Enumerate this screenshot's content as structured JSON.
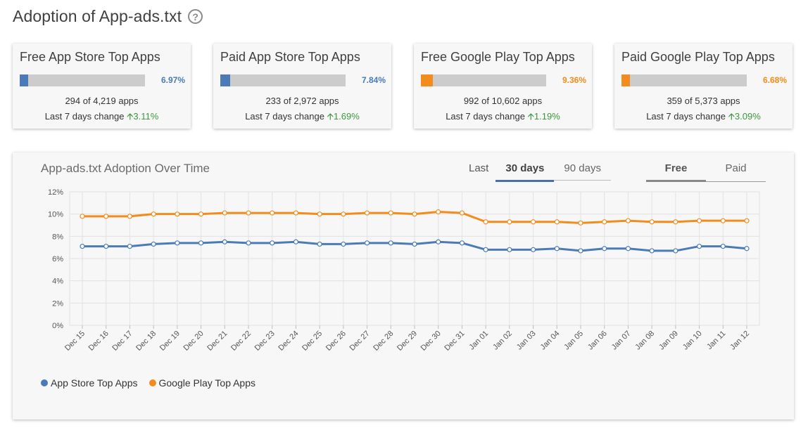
{
  "page": {
    "title": "Adoption of App-ads.txt",
    "help_icon": "question-circle-icon"
  },
  "colors": {
    "blue": "#4a7bb7",
    "orange": "#f28c1c",
    "green": "#3a9a3a"
  },
  "cards": [
    {
      "title": "Free App Store Top Apps",
      "percent_label": "6.97%",
      "fill_percent": 6.97,
      "color": "#4a7bb7",
      "count": "294 of 4,219 apps",
      "change_label": "Last 7 days change",
      "change_value": "3.11%"
    },
    {
      "title": "Paid App Store Top Apps",
      "percent_label": "7.84%",
      "fill_percent": 7.84,
      "color": "#4a7bb7",
      "count": "233 of 2,972 apps",
      "change_label": "Last 7 days change",
      "change_value": "1.69%"
    },
    {
      "title": "Free Google Play Top Apps",
      "percent_label": "9.36%",
      "fill_percent": 9.36,
      "color": "#f28c1c",
      "count": "992 of 10,602 apps",
      "change_label": "Last 7 days change",
      "change_value": "1.19%"
    },
    {
      "title": "Paid Google Play Top Apps",
      "percent_label": "6.68%",
      "fill_percent": 6.68,
      "color": "#f28c1c",
      "count": "359 of 5,373 apps",
      "change_label": "Last 7 days change",
      "change_value": "3.09%"
    }
  ],
  "chart_panel": {
    "title": "App-ads.txt Adoption Over Time",
    "range_prefix": "Last",
    "range_tabs": [
      {
        "label": "30 days",
        "active": true
      },
      {
        "label": "90 days",
        "active": false
      }
    ],
    "type_tabs": [
      {
        "label": "Free",
        "active": true
      },
      {
        "label": "Paid",
        "active": false
      }
    ]
  },
  "chart_data": {
    "type": "line",
    "title": "App-ads.txt Adoption Over Time",
    "xlabel": "",
    "ylabel": "",
    "categories": [
      "Dec 15",
      "Dec 16",
      "Dec 17",
      "Dec 18",
      "Dec 19",
      "Dec 20",
      "Dec 21",
      "Dec 22",
      "Dec 23",
      "Dec 24",
      "Dec 25",
      "Dec 26",
      "Dec 27",
      "Dec 28",
      "Dec 29",
      "Dec 30",
      "Dec 31",
      "Jan 01",
      "Jan 02",
      "Jan 03",
      "Jan 04",
      "Jan 05",
      "Jan 06",
      "Jan 07",
      "Jan 08",
      "Jan 09",
      "Jan 10",
      "Jan 11",
      "Jan 12"
    ],
    "yticks": [
      "0%",
      "2%",
      "4%",
      "6%",
      "8%",
      "10%",
      "12%"
    ],
    "ylim": [
      0,
      12
    ],
    "grid": true,
    "legend_position": "bottom-left",
    "series": [
      {
        "name": "App Store Top Apps",
        "color": "#4a7bb7",
        "values": [
          7.1,
          7.1,
          7.1,
          7.3,
          7.4,
          7.4,
          7.5,
          7.4,
          7.4,
          7.5,
          7.3,
          7.3,
          7.4,
          7.4,
          7.3,
          7.5,
          7.4,
          6.8,
          6.8,
          6.8,
          6.9,
          6.7,
          6.9,
          6.9,
          6.7,
          6.7,
          7.1,
          7.1,
          6.9
        ]
      },
      {
        "name": "Google Play Top Apps",
        "color": "#f28c1c",
        "values": [
          9.8,
          9.8,
          9.8,
          10.0,
          10.0,
          10.0,
          10.1,
          10.1,
          10.1,
          10.1,
          10.0,
          10.0,
          10.1,
          10.1,
          10.0,
          10.2,
          10.1,
          9.3,
          9.3,
          9.3,
          9.3,
          9.2,
          9.3,
          9.4,
          9.3,
          9.3,
          9.4,
          9.4,
          9.4
        ]
      }
    ]
  }
}
